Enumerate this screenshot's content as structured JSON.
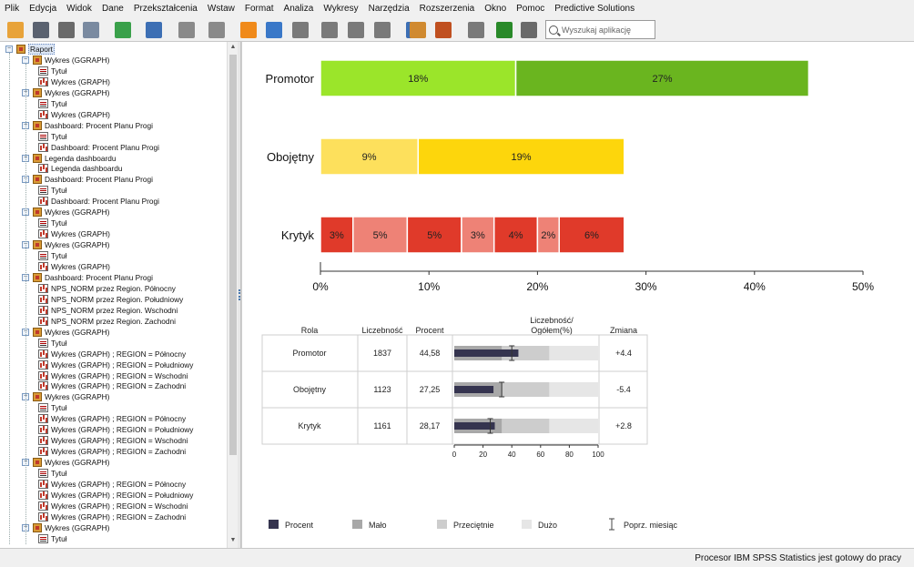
{
  "menu": [
    "Plik",
    "Edycja",
    "Widok",
    "Dane",
    "Przekształcenia",
    "Wstaw",
    "Format",
    "Analiza",
    "Wykresy",
    "Narzędzia",
    "Rozszerzenia",
    "Okno",
    "Pomoc",
    "Predictive Solutions"
  ],
  "search": {
    "placeholder": "Wyszukaj aplikację"
  },
  "toolbar_icons": [
    {
      "name": "open-folder-icon",
      "color": "#e8a33a"
    },
    {
      "name": "save-icon",
      "color": "#5a6270"
    },
    {
      "name": "print-icon",
      "color": "#6a6a6a"
    },
    {
      "name": "print-preview-icon",
      "color": "#7a8aa0"
    },
    {
      "name": "export-icon",
      "color": "#3aa04a"
    },
    {
      "name": "goto-data-icon",
      "color": "#3d6fb4"
    },
    {
      "name": "undo-icon",
      "color": "#8a8a8a"
    },
    {
      "name": "redo-icon",
      "color": "#8a8a8a"
    },
    {
      "name": "star-icon",
      "color": "#f08a1a"
    },
    {
      "name": "web-report-icon",
      "color": "#3a78c8"
    },
    {
      "name": "charts-icon",
      "color": "#7a7a7a"
    },
    {
      "name": "table-icon",
      "color": "#7a7a7a"
    },
    {
      "name": "pivot-icon",
      "color": "#7a7a7a"
    },
    {
      "name": "download-icon",
      "color": "#7a7a7a"
    },
    {
      "name": "data-view-icon",
      "color": "#3d6fb4"
    },
    {
      "name": "edit-icon",
      "color": "#d08a30"
    },
    {
      "name": "script-icon",
      "color": "#c05020"
    },
    {
      "name": "insert-icon",
      "color": "#7a7a7a"
    },
    {
      "name": "new-item-icon",
      "color": "#2a8a2a"
    },
    {
      "name": "text-icon",
      "color": "#6a6a6a"
    }
  ],
  "tree": [
    {
      "level": 0,
      "type": "root",
      "label": "Raport"
    },
    {
      "level": 1,
      "type": "book",
      "label": "Wykres (GGRAPH)"
    },
    {
      "level": 2,
      "type": "title",
      "label": "Tytuł"
    },
    {
      "level": 2,
      "type": "graph",
      "label": "Wykres (GRAPH)"
    },
    {
      "level": 1,
      "type": "book",
      "label": "Wykres (GGRAPH)"
    },
    {
      "level": 2,
      "type": "title",
      "label": "Tytuł"
    },
    {
      "level": 2,
      "type": "graph",
      "label": "Wykres (GRAPH)"
    },
    {
      "level": 1,
      "type": "book",
      "label": "Dashboard: Procent Planu Progi"
    },
    {
      "level": 2,
      "type": "title",
      "label": "Tytuł"
    },
    {
      "level": 2,
      "type": "graph",
      "label": "Dashboard: Procent Planu Progi"
    },
    {
      "level": 1,
      "type": "book",
      "label": "Legenda dashboardu"
    },
    {
      "level": 2,
      "type": "graph",
      "label": "Legenda dashboardu"
    },
    {
      "level": 1,
      "type": "book",
      "label": "Dashboard: Procent Planu Progi"
    },
    {
      "level": 2,
      "type": "title",
      "label": "Tytuł"
    },
    {
      "level": 2,
      "type": "graph",
      "label": "Dashboard: Procent Planu Progi"
    },
    {
      "level": 1,
      "type": "book",
      "label": "Wykres (GGRAPH)"
    },
    {
      "level": 2,
      "type": "title",
      "label": "Tytuł"
    },
    {
      "level": 2,
      "type": "graph",
      "label": "Wykres (GRAPH)"
    },
    {
      "level": 1,
      "type": "book",
      "label": "Wykres (GGRAPH)"
    },
    {
      "level": 2,
      "type": "title",
      "label": "Tytuł"
    },
    {
      "level": 2,
      "type": "graph",
      "label": "Wykres (GRAPH)"
    },
    {
      "level": 1,
      "type": "book",
      "label": "Dashboard: Procent Planu Progi"
    },
    {
      "level": 2,
      "type": "graph",
      "label": "NPS_NORM przez Region. Północny"
    },
    {
      "level": 2,
      "type": "graph",
      "label": "NPS_NORM przez Region. Południowy"
    },
    {
      "level": 2,
      "type": "graph",
      "label": "NPS_NORM przez Region. Wschodni"
    },
    {
      "level": 2,
      "type": "graph",
      "label": "NPS_NORM przez Region. Zachodni"
    },
    {
      "level": 1,
      "type": "book",
      "label": "Wykres (GGRAPH)"
    },
    {
      "level": 2,
      "type": "title",
      "label": "Tytuł"
    },
    {
      "level": 2,
      "type": "graph",
      "label": "Wykres (GRAPH) ; REGION = Północny"
    },
    {
      "level": 2,
      "type": "graph",
      "label": "Wykres (GRAPH) ; REGION = Południowy"
    },
    {
      "level": 2,
      "type": "graph",
      "label": "Wykres (GRAPH) ; REGION = Wschodni"
    },
    {
      "level": 2,
      "type": "graph",
      "label": "Wykres (GRAPH) ; REGION = Zachodni"
    },
    {
      "level": 1,
      "type": "book",
      "label": "Wykres (GGRAPH)"
    },
    {
      "level": 2,
      "type": "title",
      "label": "Tytuł"
    },
    {
      "level": 2,
      "type": "graph",
      "label": "Wykres (GRAPH) ; REGION = Północny"
    },
    {
      "level": 2,
      "type": "graph",
      "label": "Wykres (GRAPH) ; REGION = Południowy"
    },
    {
      "level": 2,
      "type": "graph",
      "label": "Wykres (GRAPH) ; REGION = Wschodni"
    },
    {
      "level": 2,
      "type": "graph",
      "label": "Wykres (GRAPH) ; REGION = Zachodni"
    },
    {
      "level": 1,
      "type": "book",
      "label": "Wykres (GGRAPH)"
    },
    {
      "level": 2,
      "type": "title",
      "label": "Tytuł"
    },
    {
      "level": 2,
      "type": "graph",
      "label": "Wykres (GRAPH) ; REGION = Północny"
    },
    {
      "level": 2,
      "type": "graph",
      "label": "Wykres (GRAPH) ; REGION = Południowy"
    },
    {
      "level": 2,
      "type": "graph",
      "label": "Wykres (GRAPH) ; REGION = Wschodni"
    },
    {
      "level": 2,
      "type": "graph",
      "label": "Wykres (GRAPH) ; REGION = Zachodni"
    },
    {
      "level": 1,
      "type": "book",
      "label": "Wykres (GGRAPH)"
    },
    {
      "level": 2,
      "type": "title",
      "label": "Tytuł"
    }
  ],
  "chart_data": [
    {
      "type": "bar",
      "orientation": "horizontal-stacked",
      "categories": [
        "Promotor",
        "Obojętny",
        "Krytyk"
      ],
      "xlim": [
        0,
        50
      ],
      "xticks": [
        "0%",
        "10%",
        "20%",
        "30%",
        "40%",
        "50%"
      ],
      "segments": [
        [
          {
            "value": 18,
            "label": "18%",
            "color": "#9be52a"
          },
          {
            "value": 27,
            "label": "27%",
            "color": "#6ab51f"
          }
        ],
        [
          {
            "value": 9,
            "label": "9%",
            "color": "#fde05c"
          },
          {
            "value": 19,
            "label": "19%",
            "color": "#fdd60c"
          }
        ],
        [
          {
            "value": 3,
            "label": "3%",
            "color": "#e03a2a"
          },
          {
            "value": 5,
            "label": "5%",
            "color": "#ee8276"
          },
          {
            "value": 5,
            "label": "5%",
            "color": "#e03a2a"
          },
          {
            "value": 3,
            "label": "3%",
            "color": "#ee8276"
          },
          {
            "value": 4,
            "label": "4%",
            "color": "#e03a2a"
          },
          {
            "value": 2,
            "label": "2%",
            "color": "#ee8276"
          },
          {
            "value": 6,
            "label": "6%",
            "color": "#e03a2a"
          }
        ]
      ]
    },
    {
      "type": "table",
      "columns": [
        "Rola",
        "Liczebność",
        "Procent",
        "Liczebność/\nOgółem(%)",
        "Zmiana"
      ],
      "rows": [
        {
          "rola": "Promotor",
          "liczebnosc": "1837",
          "procent": "44,58",
          "zmiana": "+4.4",
          "bullet": 44.58,
          "prev_month": 40
        },
        {
          "rola": "Obojętny",
          "liczebnosc": "1123",
          "procent": "27,25",
          "zmiana": "-5.4",
          "bullet": 27.25,
          "prev_month": 33
        },
        {
          "rola": "Krytyk",
          "liczebnosc": "1161",
          "procent": "28,17",
          "zmiana": "+2.8",
          "bullet": 28.17,
          "prev_month": 25
        }
      ],
      "bullet_ranges": {
        "malo": 33,
        "przecietnie": 66,
        "duzo": 100
      },
      "bullet_axis": [
        "0",
        "20",
        "40",
        "60",
        "80",
        "100"
      ],
      "colors": {
        "procent": "#35344f",
        "malo": "#a8a8a8",
        "przecietnie": "#cdcdcd",
        "duzo": "#e6e6e6"
      }
    }
  ],
  "legend": [
    {
      "label": "Procent",
      "color": "#35344f",
      "kind": "box"
    },
    {
      "label": "Mało",
      "color": "#a8a8a8",
      "kind": "box"
    },
    {
      "label": "Przeciętnie",
      "color": "#cdcdcd",
      "kind": "box"
    },
    {
      "label": "Dużo",
      "color": "#e6e6e6",
      "kind": "box"
    },
    {
      "label": "Poprz. miesiąc",
      "color": "#444444",
      "kind": "ibar"
    }
  ],
  "status": "Procesor IBM SPSS Statistics  jest gotowy do pracy"
}
